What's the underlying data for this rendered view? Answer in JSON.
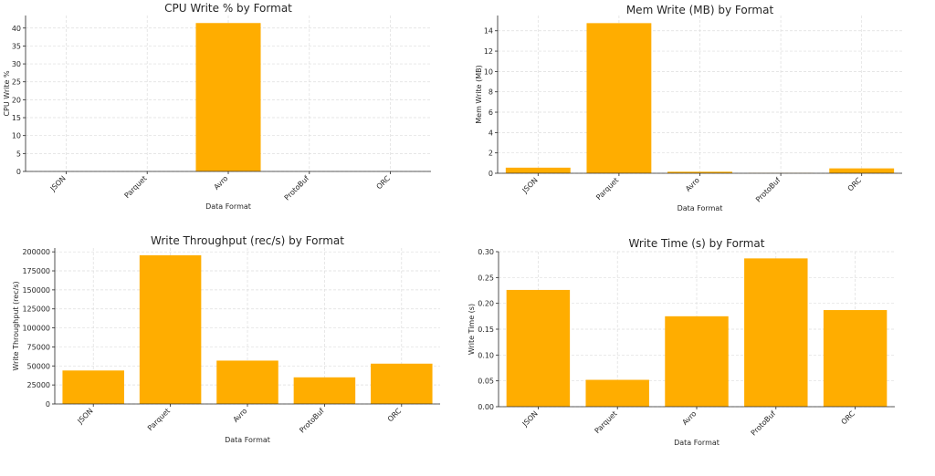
{
  "colors": {
    "bar": "#ffad00",
    "axis": "#262626",
    "grid": "#dddddd"
  },
  "chart_data": [
    {
      "type": "bar",
      "title": "CPU Write % by Format",
      "xlabel": "Data Format",
      "ylabel": "CPU Write %",
      "categories": [
        "JSON",
        "Parquet",
        "Avro",
        "ProtoBuf",
        "ORC"
      ],
      "values": [
        0,
        0,
        41.4,
        0,
        0
      ],
      "ylim": [
        0,
        43.5
      ],
      "yticks": [
        0,
        5,
        10,
        15,
        20,
        25,
        30,
        35,
        40
      ],
      "ytick_labels": [
        "0",
        "5",
        "10",
        "15",
        "20",
        "25",
        "30",
        "35",
        "40"
      ],
      "grid": true
    },
    {
      "type": "bar",
      "title": "Mem Write (MB) by Format",
      "xlabel": "Data Format",
      "ylabel": "Mem Write (MB)",
      "categories": [
        "JSON",
        "Parquet",
        "Avro",
        "ProtoBuf",
        "ORC"
      ],
      "values": [
        0.55,
        14.75,
        0.15,
        0.02,
        0.48
      ],
      "ylim": [
        0,
        15.5
      ],
      "yticks": [
        0,
        2,
        4,
        6,
        8,
        10,
        12,
        14
      ],
      "ytick_labels": [
        "0",
        "2",
        "4",
        "6",
        "8",
        "10",
        "12",
        "14"
      ],
      "grid": true
    },
    {
      "type": "bar",
      "title": "Write Throughput (rec/s) by Format",
      "xlabel": "Data Format",
      "ylabel": "Write Throughput (rec/s)",
      "categories": [
        "JSON",
        "Parquet",
        "Avro",
        "ProtoBuf",
        "ORC"
      ],
      "values": [
        44000,
        195500,
        57000,
        35000,
        53000
      ],
      "ylim": [
        0,
        205000
      ],
      "yticks": [
        0,
        25000,
        50000,
        75000,
        100000,
        125000,
        150000,
        175000,
        200000
      ],
      "ytick_labels": [
        "0",
        "25000",
        "50000",
        "75000",
        "100000",
        "125000",
        "150000",
        "175000",
        "200000"
      ],
      "grid": true
    },
    {
      "type": "bar",
      "title": "Write Time (s) by Format",
      "xlabel": "Data Format",
      "ylabel": "Write Time (s)",
      "categories": [
        "JSON",
        "Parquet",
        "Avro",
        "ProtoBuf",
        "ORC"
      ],
      "values": [
        0.226,
        0.052,
        0.175,
        0.287,
        0.187
      ],
      "ylim": [
        0,
        0.3
      ],
      "yticks": [
        0,
        0.05,
        0.1,
        0.15,
        0.2,
        0.25,
        0.3
      ],
      "ytick_labels": [
        "0.00",
        "0.05",
        "0.10",
        "0.15",
        "0.20",
        "0.25",
        "0.30"
      ],
      "grid": true
    }
  ]
}
